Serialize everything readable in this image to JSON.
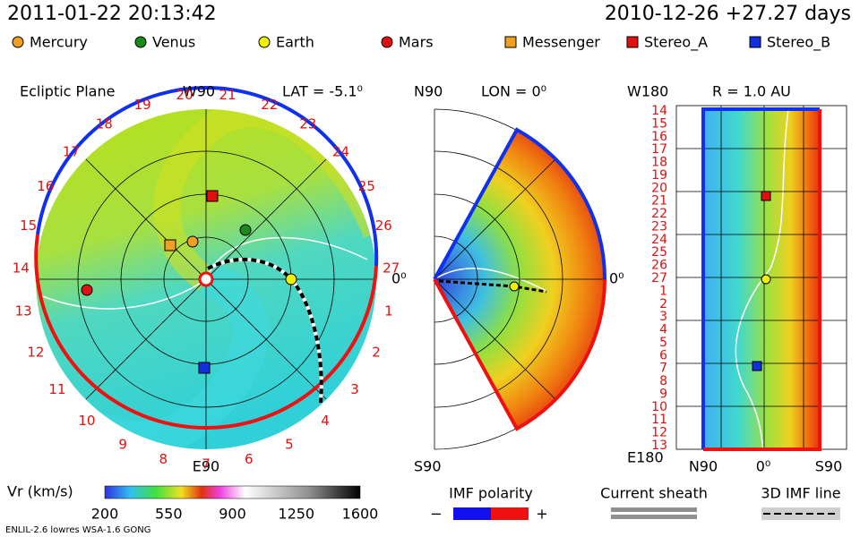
{
  "header": {
    "time": "2011-01-22 20:13:42",
    "reference": "2010-12-26 +27.27 days"
  },
  "legend": [
    {
      "label": "Mercury",
      "color": "#f0a020",
      "shape": "circle"
    },
    {
      "label": "Venus",
      "color": "#1a8a1a",
      "shape": "circle"
    },
    {
      "label": "Earth",
      "color": "#f0f000",
      "shape": "circle"
    },
    {
      "label": "Mars",
      "color": "#e01010",
      "shape": "circle"
    },
    {
      "label": "Messenger",
      "color": "#f0a020",
      "shape": "square"
    },
    {
      "label": "Stereo_A",
      "color": "#e01010",
      "shape": "square"
    },
    {
      "label": "Stereo_B",
      "color": "#1030e0",
      "shape": "square"
    }
  ],
  "ecliptic": {
    "title": "Ecliptic Plane",
    "top": "W90",
    "lat": "LAT = -5.1⁰",
    "bottom": "E90",
    "right": "0⁰",
    "rotation_labels": [
      1,
      2,
      3,
      4,
      5,
      6,
      7,
      8,
      9,
      10,
      11,
      12,
      13,
      14,
      15,
      16,
      17,
      18,
      19,
      20,
      21,
      22,
      23,
      24,
      25,
      26,
      27
    ]
  },
  "meridional": {
    "top": "N90",
    "lon": "LON = 0⁰",
    "bottom": "S90",
    "right": "0⁰"
  },
  "radial": {
    "top": "W180",
    "r": "R = 1.0 AU",
    "bottom": "E180",
    "x_labels": [
      "N90",
      "0⁰",
      "S90"
    ],
    "y_labels": [
      14,
      15,
      16,
      17,
      18,
      19,
      20,
      21,
      22,
      23,
      24,
      25,
      26,
      27,
      1,
      2,
      3,
      4,
      5,
      6,
      7,
      8,
      9,
      10,
      11,
      12,
      13
    ]
  },
  "colorbar": {
    "label": "Vr (km/s)",
    "ticks": [
      200,
      550,
      900,
      1250,
      1600
    ]
  },
  "imf": {
    "title": "IMF polarity",
    "minus": "−",
    "plus": "+"
  },
  "sheath": "Current sheath",
  "imf_line": "3D IMF line",
  "footer": "ENLIL-2.6 lowres WSA-1.6 GONG"
}
